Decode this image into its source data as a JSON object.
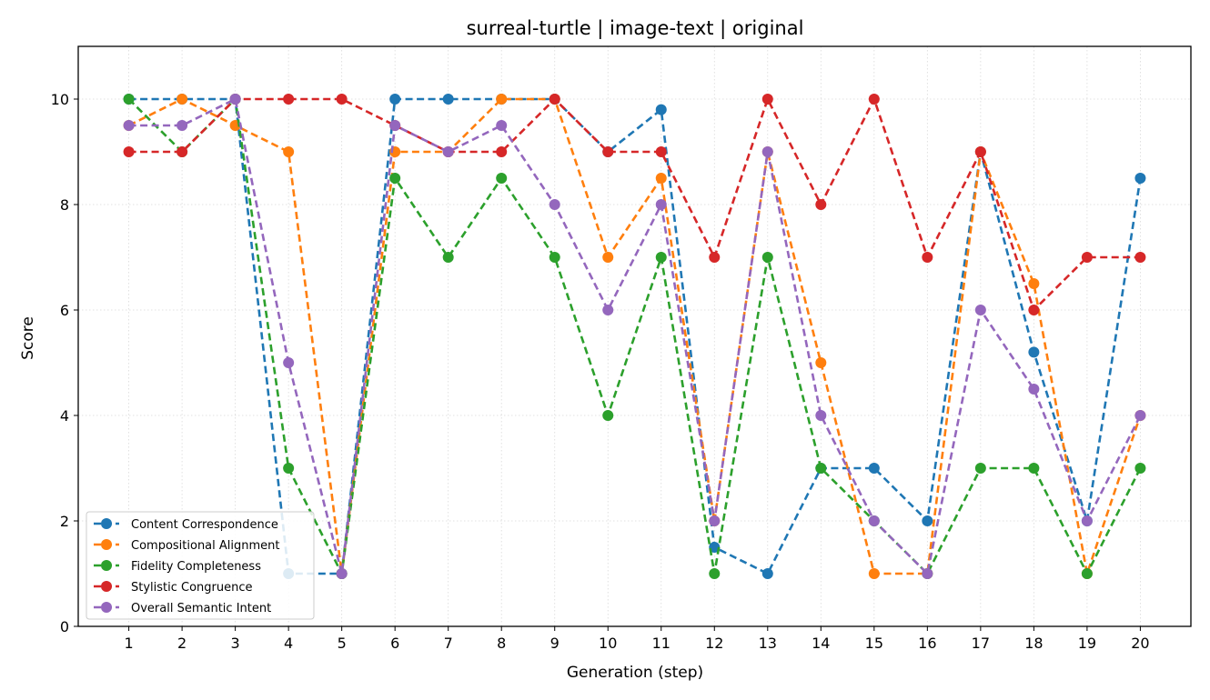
{
  "chart_data": {
    "type": "line",
    "title": "surreal-turtle | image-text | original",
    "xlabel": "Generation (step)",
    "ylabel": "Score",
    "x": [
      1,
      2,
      3,
      4,
      5,
      6,
      7,
      8,
      9,
      10,
      11,
      12,
      13,
      14,
      15,
      16,
      17,
      18,
      19,
      20
    ],
    "x_ticks": [
      "1",
      "2",
      "3",
      "4",
      "5",
      "6",
      "7",
      "8",
      "9",
      "10",
      "11",
      "12",
      "13",
      "14",
      "15",
      "16",
      "17",
      "18",
      "19",
      "20"
    ],
    "y_ticks": [
      "0",
      "2",
      "4",
      "6",
      "8",
      "10"
    ],
    "xlim": [
      0.05,
      20.95
    ],
    "ylim": [
      0,
      11
    ],
    "grid": true,
    "legend_position": "lower-left",
    "line_style": "dashed",
    "marker": "circle",
    "series": [
      {
        "name": "Content Correspondence",
        "color": "#1f77b4",
        "values": [
          10,
          10,
          10,
          1,
          1,
          10,
          10,
          10,
          10,
          9,
          9.8,
          1.5,
          1,
          3,
          3,
          2,
          9,
          5.2,
          2,
          8.5
        ]
      },
      {
        "name": "Compositional Alignment",
        "color": "#ff7f0e",
        "values": [
          9.5,
          10,
          9.5,
          9,
          1,
          9,
          9,
          10,
          10,
          7,
          8.5,
          2,
          9,
          5,
          1,
          1,
          9,
          6.5,
          1,
          4
        ]
      },
      {
        "name": "Fidelity Completeness",
        "color": "#2ca02c",
        "values": [
          10,
          9,
          10,
          3,
          1,
          8.5,
          7,
          8.5,
          7,
          4,
          7,
          1,
          7,
          3,
          2,
          1,
          3,
          3,
          1,
          3
        ]
      },
      {
        "name": "Stylistic Congruence",
        "color": "#d62728",
        "values": [
          9,
          9,
          10,
          10,
          10,
          9.5,
          9,
          9,
          10,
          9,
          9,
          7,
          10,
          8,
          10,
          7,
          9,
          6,
          7,
          7
        ]
      },
      {
        "name": "Overall Semantic Intent",
        "color": "#9467bd",
        "values": [
          9.5,
          9.5,
          10,
          5,
          1,
          9.5,
          9,
          9.5,
          8,
          6,
          8,
          2,
          9,
          4,
          2,
          1,
          6,
          4.5,
          2,
          4
        ]
      }
    ]
  }
}
